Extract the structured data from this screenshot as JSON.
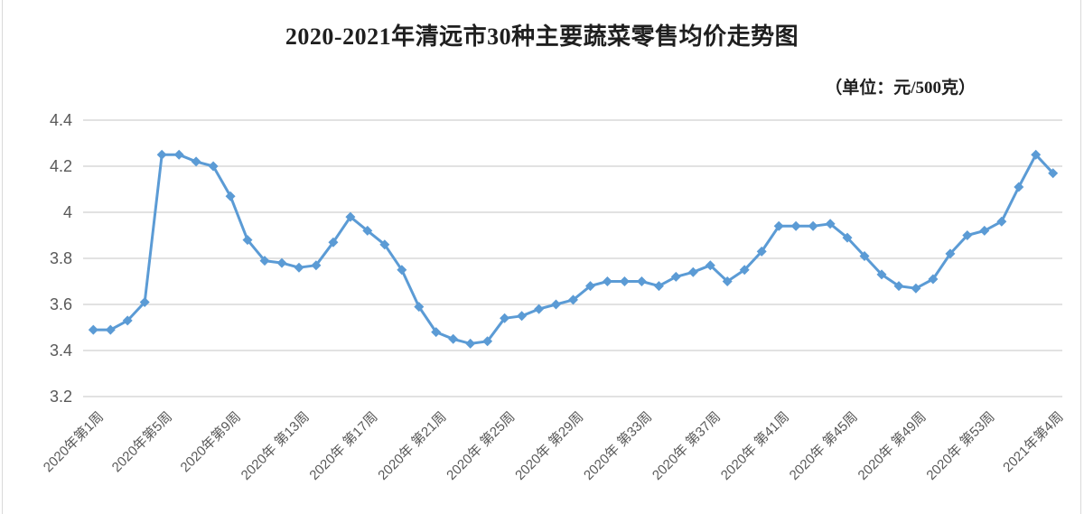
{
  "header": {
    "title": "2020-2021年清远市30种主要蔬菜零售均价走势图",
    "unit_label": "（单位：元/500克）"
  },
  "chart_data": {
    "type": "line",
    "title": "2020-2021年清远市30种主要蔬菜零售均价走势图",
    "unit_label": "（单位：元/500克）",
    "ylabel": "",
    "xlabel": "",
    "ylim": [
      3.2,
      4.4
    ],
    "y_ticks": [
      3.2,
      3.4,
      3.6,
      3.8,
      4.0,
      4.2,
      4.4
    ],
    "y_tick_labels": [
      "3.2",
      "3.4",
      "3.6",
      "3.8",
      "4",
      "4.2",
      "4.4"
    ],
    "x_tick_step": 4,
    "x_tick_labels": [
      "2020年第1周",
      "2020年第5周",
      "2020年第9周",
      "2020年 第13周",
      "2020年 第17周",
      "2020年 第21周",
      "2020年 第25周",
      "2020年 第29周",
      "2020年 第33周",
      "2020年 第37周",
      "2020年 第41周",
      "2020年 第45周",
      "2020年 第49周",
      "2020年 第53周",
      "2021年第4周"
    ],
    "values": [
      3.49,
      3.49,
      3.53,
      3.61,
      4.25,
      4.25,
      4.22,
      4.2,
      4.07,
      3.88,
      3.79,
      3.78,
      3.76,
      3.77,
      3.87,
      3.98,
      3.92,
      3.86,
      3.75,
      3.59,
      3.48,
      3.45,
      3.43,
      3.44,
      3.54,
      3.55,
      3.58,
      3.6,
      3.62,
      3.68,
      3.7,
      3.7,
      3.7,
      3.68,
      3.72,
      3.74,
      3.77,
      3.7,
      3.75,
      3.83,
      3.94,
      3.94,
      3.94,
      3.95,
      3.89,
      3.81,
      3.73,
      3.68,
      3.67,
      3.71,
      3.82,
      3.9,
      3.92,
      3.96,
      4.11,
      4.25,
      4.17
    ],
    "grid": "horizontal",
    "legend": "none",
    "marker": "diamond",
    "colors": {
      "line": "#5B9BD5",
      "marker": "#5B9BD5",
      "gridline": "#D9D9D9",
      "tick_label": "#595959",
      "title": "#1F1F1F",
      "background": "#FFFFFF"
    }
  }
}
